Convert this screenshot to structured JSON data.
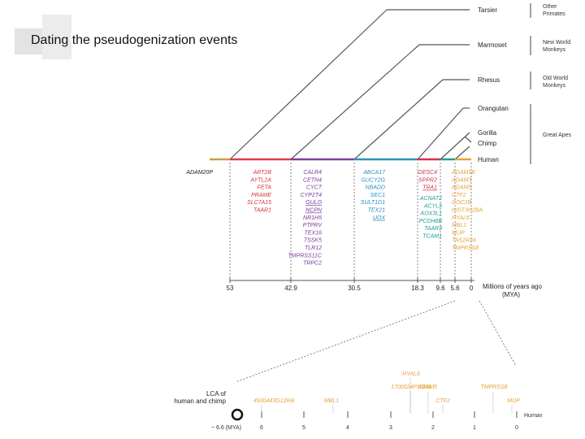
{
  "slide_title": "Dating the pseudogenization events",
  "species": [
    "Tarsier",
    "Marmoset",
    "Rhesus",
    "Orangutan",
    "Gorilla",
    "Chimp",
    "Human"
  ],
  "groups": [
    "Other Primates",
    "New World Monkeys",
    "Old World Monkeys",
    "Great Apes"
  ],
  "axis": {
    "ticks": [
      "53",
      "42.9",
      "30.5",
      "18.3",
      "9.6",
      "5.6",
      "0"
    ],
    "label_line1": "Millions of years ago",
    "label_line2": "(MYA)"
  },
  "branch_colors": [
    "#e03c4a",
    "#7b3fa0",
    "#2a8fc2",
    "#d8304e",
    "#1f9e8f",
    "#e6a23c"
  ],
  "gene_columns": [
    {
      "color": "#222222",
      "genes": [
        "ADAM20P"
      ]
    },
    {
      "color": "#d8333c",
      "genes": [
        "ART2B",
        "AYTL2A",
        "FETA",
        "PRAME",
        "SLC7A15",
        "TAAR1"
      ]
    },
    {
      "color": "#7a3a9a",
      "genes": [
        "CALR4",
        "CETN4",
        "CYCT",
        "CYP2T4",
        "GULO",
        "NCPN",
        "NR1H5",
        "PTPRV",
        "TEX16",
        "TSSK5",
        "TLR12",
        "TMPRSS11C",
        "TRPC2"
      ]
    },
    {
      "color": "#2a8fc2",
      "genes": [
        "ABCA17",
        "GUCY2G",
        "NBADD",
        "SEC1",
        "SULT1D1",
        "TEX21",
        "UOX"
      ]
    },
    {
      "color": "#d8304e",
      "genes": [
        "DESC4",
        "SPPR2",
        "TRA1"
      ]
    },
    {
      "color": "#1f9e8f",
      "genes": [
        "ACNAT2",
        "ACYL3",
        "AOX3L1",
        "PCDH8B",
        "TAAR3",
        "TCAM1"
      ]
    },
    {
      "color": "#e6a23c",
      "genes": [
        "ADAM1B",
        "ADAM3",
        "ADAM5",
        "CTF2",
        "DOC2B",
        "HIST3H2BA",
        "HYAL6",
        "MBL1",
        "MUP",
        "TAS2R34",
        "TMPRSS8"
      ]
    }
  ],
  "zoom": {
    "lca_line1": "LCA of",
    "lca_line2": "human and chimp",
    "end_label": "Human",
    "start_label": "~ 6.6 (MYA)",
    "ticks": [
      "6",
      "5",
      "4",
      "3",
      "2",
      "1",
      "0"
    ],
    "genes": [
      "4930443G12Rik",
      "MBL1",
      "HYAL6",
      "1700024P16Rik",
      "ADAM5",
      "CTF2",
      "TMPRSS8",
      "MUP"
    ]
  }
}
